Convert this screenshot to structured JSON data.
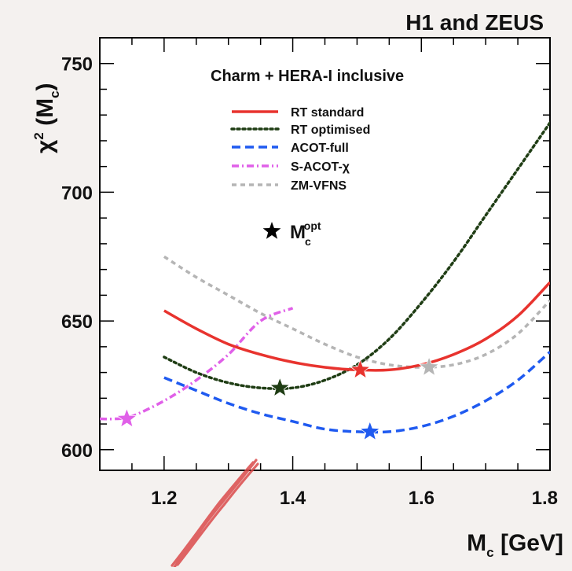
{
  "header": {
    "experiment": "H1 and ZEUS"
  },
  "chart_data": {
    "type": "line",
    "title": "Charm + HERA-I inclusive",
    "xlabel": "M",
    "xlabel_sub": "c",
    "xlabel_unit": " [GeV]",
    "ylabel": "χ",
    "ylabel_sup": "2",
    "ylabel_arg": " (M",
    "ylabel_arg_sub": "c",
    "ylabel_close": ")",
    "xlim": [
      1.1,
      1.8
    ],
    "ylim": [
      592,
      760
    ],
    "xticks": [
      1.2,
      1.4,
      1.6,
      1.8
    ],
    "xtick_labels": [
      "1.2",
      "1.4",
      "1.6",
      "1.8"
    ],
    "yticks": [
      600,
      650,
      700,
      750
    ],
    "ytick_labels": [
      "600",
      "650",
      "700",
      "750"
    ],
    "legend_position": "top-left",
    "series": [
      {
        "name": "RT standard",
        "color": "#e8332e",
        "dash": "solid",
        "x": [
          1.2,
          1.25,
          1.3,
          1.35,
          1.4,
          1.45,
          1.5,
          1.55,
          1.6,
          1.65,
          1.7,
          1.75,
          1.8
        ],
        "y": [
          654,
          647,
          641,
          637,
          634,
          632,
          631,
          631,
          633,
          637,
          643,
          652,
          665
        ],
        "optimum": {
          "x": 1.505,
          "y": 631
        }
      },
      {
        "name": "RT optimised",
        "color": "#1f3d14",
        "dash": "dotted",
        "x": [
          1.2,
          1.25,
          1.3,
          1.35,
          1.4,
          1.45,
          1.5,
          1.55,
          1.6,
          1.65,
          1.7,
          1.75,
          1.8
        ],
        "y": [
          636,
          630,
          626,
          624,
          624,
          627,
          633,
          643,
          657,
          673,
          691,
          709,
          727
        ],
        "optimum": {
          "x": 1.38,
          "y": 624
        }
      },
      {
        "name": "ACOT-full",
        "color": "#1f5af0",
        "dash": "dashed",
        "x": [
          1.2,
          1.25,
          1.3,
          1.35,
          1.4,
          1.45,
          1.5,
          1.55,
          1.6,
          1.65,
          1.7,
          1.75,
          1.8
        ],
        "y": [
          628,
          623,
          618,
          614,
          611,
          608,
          607,
          607,
          609,
          613,
          619,
          627,
          638
        ],
        "optimum": {
          "x": 1.52,
          "y": 607
        }
      },
      {
        "name": "S-ACOT-χ",
        "color": "#e060e8",
        "dash": "dashdot",
        "x": [
          1.1,
          1.125,
          1.15,
          1.2,
          1.25,
          1.3,
          1.35,
          1.4
        ],
        "y": [
          612,
          612,
          613,
          619,
          627,
          637,
          650,
          655
        ],
        "optimum": {
          "x": 1.142,
          "y": 612
        }
      },
      {
        "name": "ZM-VFNS",
        "color": "#b5b5b5",
        "dash": "dashed-short",
        "x": [
          1.2,
          1.25,
          1.3,
          1.35,
          1.4,
          1.45,
          1.5,
          1.55,
          1.6,
          1.65,
          1.7,
          1.75,
          1.8
        ],
        "y": [
          675,
          667,
          660,
          653,
          647,
          641,
          636,
          633,
          632,
          633,
          637,
          645,
          658
        ],
        "optimum": {
          "x": 1.612,
          "y": 632
        }
      }
    ],
    "marker_legend": {
      "label": "M",
      "label_sub": "c",
      "label_sup": "opt",
      "color": "#000000"
    }
  }
}
